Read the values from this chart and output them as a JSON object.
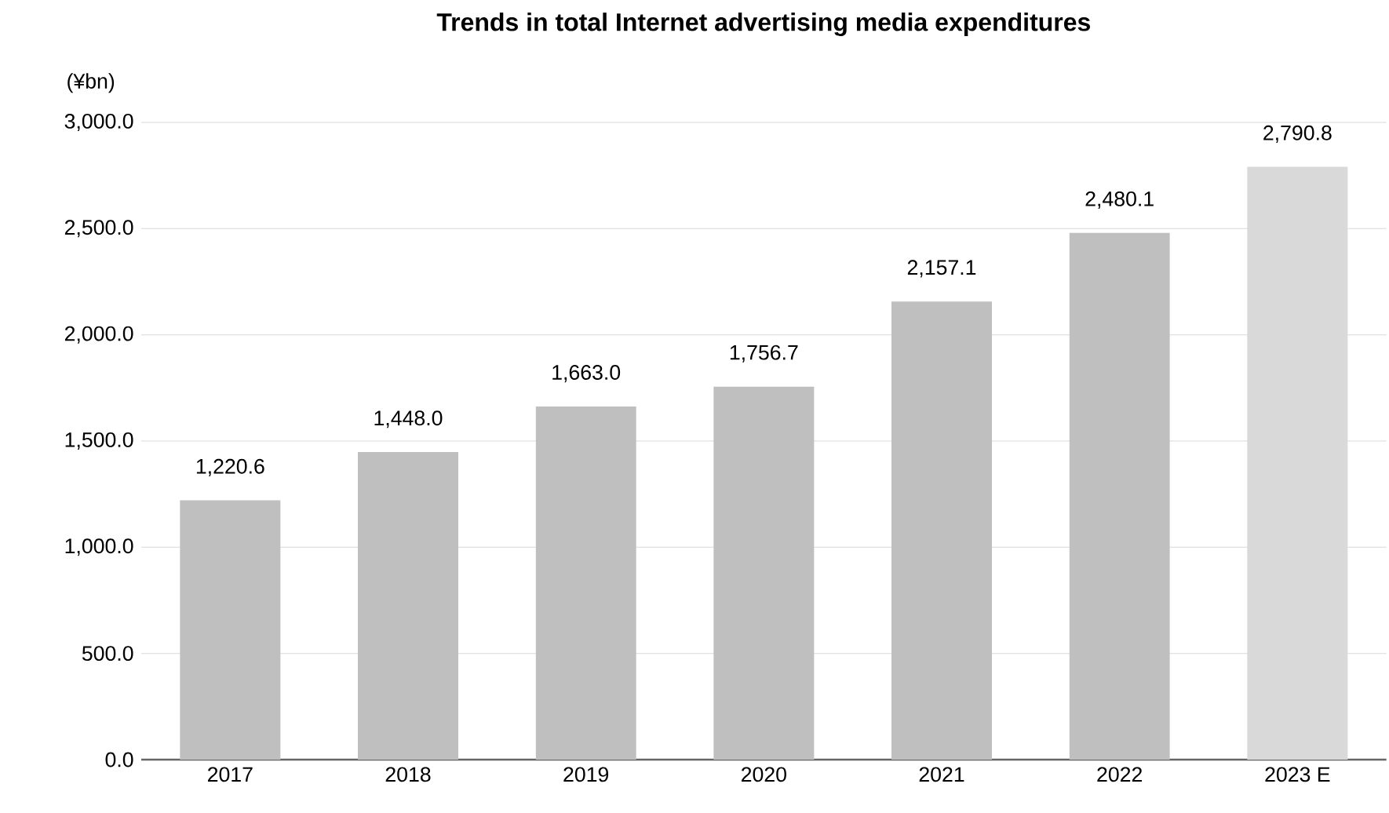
{
  "chart_data": {
    "type": "bar",
    "title": "Trends in total Internet advertising media expenditures",
    "ylabel": "(¥bn)",
    "categories": [
      "2017",
      "2018",
      "2019",
      "2020",
      "2021",
      "2022",
      "2023 E"
    ],
    "values": [
      1220.6,
      1448.0,
      1663.0,
      1756.7,
      2157.1,
      2480.1,
      2790.8
    ],
    "value_labels": [
      "1,220.6",
      "1,448.0",
      "1,663.0",
      "1,756.7",
      "2,157.1",
      "2,480.1",
      "2,790.8"
    ],
    "colors": [
      "#bfbfbf",
      "#bfbfbf",
      "#bfbfbf",
      "#bfbfbf",
      "#bfbfbf",
      "#bfbfbf",
      "#d9d9d9"
    ],
    "ylim": [
      0,
      3000
    ],
    "yticks": [
      {
        "value": 0,
        "label": "0.0"
      },
      {
        "value": 500,
        "label": "500.0"
      },
      {
        "value": 1000,
        "label": "1,000.0"
      },
      {
        "value": 1500,
        "label": "1,500.0"
      },
      {
        "value": 2000,
        "label": "2,000.0"
      },
      {
        "value": 2500,
        "label": "2,500.0"
      },
      {
        "value": 3000,
        "label": "3,000.0"
      }
    ],
    "grid": "y"
  }
}
